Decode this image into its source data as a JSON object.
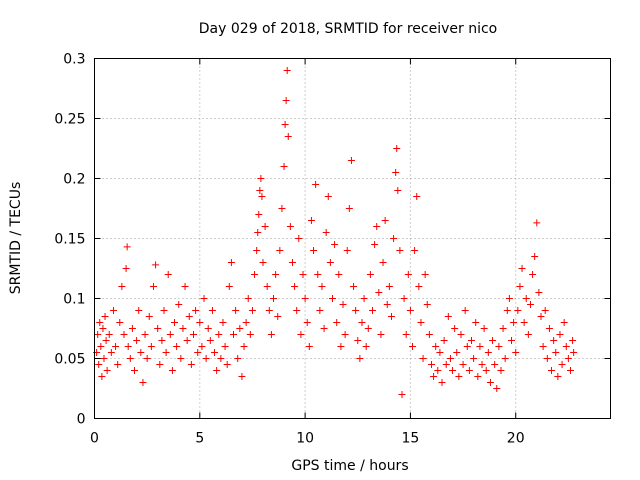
{
  "chart_data": {
    "type": "scatter",
    "title": "Day 029 of 2018, SRMTID for receiver nico",
    "xlabel": "GPS time / hours",
    "ylabel": "SRMTID / TECUs",
    "xlim": [
      0,
      24.5
    ],
    "ylim": [
      0,
      0.3
    ],
    "xticks": [
      0,
      5,
      10,
      15,
      20
    ],
    "yticks": [
      0,
      0.05,
      0.1,
      0.15,
      0.2,
      0.25,
      0.3
    ],
    "xtick_labels": [
      "0",
      "5",
      "10",
      "15",
      "20"
    ],
    "ytick_labels": [
      "0",
      "0.05",
      "0.1",
      "0.15",
      "0.2",
      "0.25",
      "0.3"
    ],
    "grid": true,
    "marker": "plus",
    "color": "#ff0000",
    "series": [
      {
        "points": [
          [
            0.1,
            0.055
          ],
          [
            0.15,
            0.07
          ],
          [
            0.2,
            0.045
          ],
          [
            0.25,
            0.08
          ],
          [
            0.3,
            0.06
          ],
          [
            0.35,
            0.035
          ],
          [
            0.4,
            0.075
          ],
          [
            0.45,
            0.05
          ],
          [
            0.5,
            0.085
          ],
          [
            0.55,
            0.065
          ],
          [
            0.6,
            0.04
          ],
          [
            0.7,
            0.07
          ],
          [
            0.8,
            0.055
          ],
          [
            0.9,
            0.09
          ],
          [
            1.0,
            0.06
          ],
          [
            1.1,
            0.045
          ],
          [
            1.2,
            0.08
          ],
          [
            1.3,
            0.11
          ],
          [
            1.4,
            0.07
          ],
          [
            1.5,
            0.125
          ],
          [
            1.55,
            0.143
          ],
          [
            1.6,
            0.06
          ],
          [
            1.7,
            0.05
          ],
          [
            1.8,
            0.075
          ],
          [
            1.9,
            0.04
          ],
          [
            2.0,
            0.065
          ],
          [
            2.1,
            0.09
          ],
          [
            2.2,
            0.055
          ],
          [
            2.3,
            0.03
          ],
          [
            2.4,
            0.07
          ],
          [
            2.5,
            0.05
          ],
          [
            2.6,
            0.085
          ],
          [
            2.7,
            0.06
          ],
          [
            2.8,
            0.11
          ],
          [
            2.9,
            0.128
          ],
          [
            3.0,
            0.075
          ],
          [
            3.1,
            0.045
          ],
          [
            3.2,
            0.065
          ],
          [
            3.3,
            0.09
          ],
          [
            3.4,
            0.055
          ],
          [
            3.5,
            0.12
          ],
          [
            3.6,
            0.07
          ],
          [
            3.7,
            0.04
          ],
          [
            3.8,
            0.08
          ],
          [
            3.9,
            0.06
          ],
          [
            4.0,
            0.095
          ],
          [
            4.1,
            0.05
          ],
          [
            4.2,
            0.075
          ],
          [
            4.3,
            0.11
          ],
          [
            4.4,
            0.065
          ],
          [
            4.5,
            0.085
          ],
          [
            4.6,
            0.045
          ],
          [
            4.7,
            0.07
          ],
          [
            4.8,
            0.09
          ],
          [
            4.9,
            0.055
          ],
          [
            5.0,
            0.08
          ],
          [
            5.1,
            0.06
          ],
          [
            5.2,
            0.1
          ],
          [
            5.3,
            0.05
          ],
          [
            5.4,
            0.075
          ],
          [
            5.5,
            0.065
          ],
          [
            5.6,
            0.09
          ],
          [
            5.7,
            0.055
          ],
          [
            5.8,
            0.04
          ],
          [
            5.9,
            0.07
          ],
          [
            6.0,
            0.05
          ],
          [
            6.1,
            0.08
          ],
          [
            6.2,
            0.06
          ],
          [
            6.3,
            0.045
          ],
          [
            6.4,
            0.11
          ],
          [
            6.5,
            0.13
          ],
          [
            6.6,
            0.07
          ],
          [
            6.7,
            0.09
          ],
          [
            6.8,
            0.05
          ],
          [
            6.9,
            0.075
          ],
          [
            7.0,
            0.035
          ],
          [
            7.1,
            0.06
          ],
          [
            7.2,
            0.08
          ],
          [
            7.3,
            0.1
          ],
          [
            7.4,
            0.07
          ],
          [
            7.5,
            0.09
          ],
          [
            7.6,
            0.12
          ],
          [
            7.7,
            0.14
          ],
          [
            7.75,
            0.155
          ],
          [
            7.8,
            0.17
          ],
          [
            7.85,
            0.19
          ],
          [
            7.9,
            0.2
          ],
          [
            7.95,
            0.185
          ],
          [
            8.0,
            0.13
          ],
          [
            8.1,
            0.16
          ],
          [
            8.2,
            0.11
          ],
          [
            8.3,
            0.09
          ],
          [
            8.4,
            0.07
          ],
          [
            8.5,
            0.1
          ],
          [
            8.6,
            0.12
          ],
          [
            8.7,
            0.085
          ],
          [
            8.8,
            0.14
          ],
          [
            8.9,
            0.175
          ],
          [
            9.0,
            0.21
          ],
          [
            9.05,
            0.245
          ],
          [
            9.1,
            0.265
          ],
          [
            9.15,
            0.29
          ],
          [
            9.2,
            0.235
          ],
          [
            9.3,
            0.16
          ],
          [
            9.4,
            0.13
          ],
          [
            9.5,
            0.11
          ],
          [
            9.6,
            0.09
          ],
          [
            9.7,
            0.15
          ],
          [
            9.8,
            0.07
          ],
          [
            9.9,
            0.12
          ],
          [
            10.0,
            0.1
          ],
          [
            10.1,
            0.08
          ],
          [
            10.2,
            0.06
          ],
          [
            10.3,
            0.165
          ],
          [
            10.4,
            0.14
          ],
          [
            10.5,
            0.195
          ],
          [
            10.6,
            0.12
          ],
          [
            10.7,
            0.09
          ],
          [
            10.8,
            0.11
          ],
          [
            10.9,
            0.075
          ],
          [
            11.0,
            0.155
          ],
          [
            11.1,
            0.185
          ],
          [
            11.2,
            0.13
          ],
          [
            11.3,
            0.1
          ],
          [
            11.4,
            0.145
          ],
          [
            11.5,
            0.08
          ],
          [
            11.6,
            0.12
          ],
          [
            11.7,
            0.06
          ],
          [
            11.8,
            0.095
          ],
          [
            11.9,
            0.07
          ],
          [
            12.0,
            0.14
          ],
          [
            12.1,
            0.175
          ],
          [
            12.2,
            0.215
          ],
          [
            12.3,
            0.11
          ],
          [
            12.4,
            0.09
          ],
          [
            12.5,
            0.065
          ],
          [
            12.6,
            0.05
          ],
          [
            12.7,
            0.08
          ],
          [
            12.8,
            0.1
          ],
          [
            12.9,
            0.06
          ],
          [
            13.0,
            0.075
          ],
          [
            13.1,
            0.12
          ],
          [
            13.2,
            0.09
          ],
          [
            13.3,
            0.145
          ],
          [
            13.4,
            0.16
          ],
          [
            13.5,
            0.105
          ],
          [
            13.6,
            0.07
          ],
          [
            13.7,
            0.13
          ],
          [
            13.8,
            0.165
          ],
          [
            13.9,
            0.095
          ],
          [
            14.0,
            0.11
          ],
          [
            14.1,
            0.085
          ],
          [
            14.2,
            0.15
          ],
          [
            14.3,
            0.205
          ],
          [
            14.35,
            0.225
          ],
          [
            14.4,
            0.19
          ],
          [
            14.5,
            0.14
          ],
          [
            14.6,
            0.02
          ],
          [
            14.7,
            0.1
          ],
          [
            14.8,
            0.07
          ],
          [
            14.9,
            0.12
          ],
          [
            15.0,
            0.09
          ],
          [
            15.1,
            0.06
          ],
          [
            15.2,
            0.14
          ],
          [
            15.3,
            0.185
          ],
          [
            15.4,
            0.11
          ],
          [
            15.5,
            0.08
          ],
          [
            15.6,
            0.05
          ],
          [
            15.7,
            0.12
          ],
          [
            15.8,
            0.095
          ],
          [
            15.9,
            0.07
          ],
          [
            16.0,
            0.045
          ],
          [
            16.1,
            0.035
          ],
          [
            16.2,
            0.06
          ],
          [
            16.3,
            0.04
          ],
          [
            16.4,
            0.055
          ],
          [
            16.5,
            0.03
          ],
          [
            16.6,
            0.065
          ],
          [
            16.7,
            0.045
          ],
          [
            16.8,
            0.085
          ],
          [
            16.9,
            0.05
          ],
          [
            17.0,
            0.04
          ],
          [
            17.1,
            0.075
          ],
          [
            17.2,
            0.055
          ],
          [
            17.3,
            0.035
          ],
          [
            17.4,
            0.07
          ],
          [
            17.5,
            0.045
          ],
          [
            17.6,
            0.09
          ],
          [
            17.7,
            0.06
          ],
          [
            17.8,
            0.04
          ],
          [
            17.9,
            0.065
          ],
          [
            18.0,
            0.05
          ],
          [
            18.1,
            0.08
          ],
          [
            18.2,
            0.035
          ],
          [
            18.3,
            0.06
          ],
          [
            18.4,
            0.045
          ],
          [
            18.5,
            0.075
          ],
          [
            18.6,
            0.04
          ],
          [
            18.7,
            0.055
          ],
          [
            18.8,
            0.03
          ],
          [
            18.9,
            0.065
          ],
          [
            19.0,
            0.045
          ],
          [
            19.1,
            0.025
          ],
          [
            19.2,
            0.06
          ],
          [
            19.3,
            0.04
          ],
          [
            19.4,
            0.075
          ],
          [
            19.5,
            0.05
          ],
          [
            19.6,
            0.09
          ],
          [
            19.7,
            0.1
          ],
          [
            19.8,
            0.065
          ],
          [
            19.9,
            0.08
          ],
          [
            20.0,
            0.055
          ],
          [
            20.1,
            0.09
          ],
          [
            20.2,
            0.11
          ],
          [
            20.3,
            0.125
          ],
          [
            20.4,
            0.08
          ],
          [
            20.5,
            0.1
          ],
          [
            20.6,
            0.07
          ],
          [
            20.7,
            0.095
          ],
          [
            20.8,
            0.12
          ],
          [
            20.9,
            0.135
          ],
          [
            21.0,
            0.163
          ],
          [
            21.1,
            0.105
          ],
          [
            21.2,
            0.085
          ],
          [
            21.3,
            0.06
          ],
          [
            21.4,
            0.09
          ],
          [
            21.5,
            0.05
          ],
          [
            21.6,
            0.075
          ],
          [
            21.7,
            0.04
          ],
          [
            21.8,
            0.065
          ],
          [
            21.9,
            0.055
          ],
          [
            22.0,
            0.035
          ],
          [
            22.1,
            0.07
          ],
          [
            22.2,
            0.045
          ],
          [
            22.3,
            0.08
          ],
          [
            22.4,
            0.06
          ],
          [
            22.5,
            0.05
          ],
          [
            22.6,
            0.04
          ],
          [
            22.7,
            0.065
          ],
          [
            22.75,
            0.055
          ]
        ]
      }
    ]
  }
}
